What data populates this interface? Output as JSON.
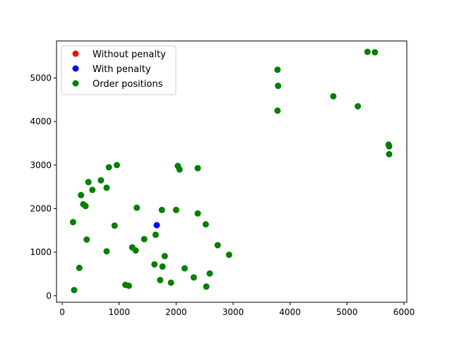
{
  "chart_data": {
    "type": "scatter",
    "title": "",
    "xlabel": "",
    "ylabel": "",
    "xlim": [
      -100,
      6050
    ],
    "ylim": [
      -150,
      5850
    ],
    "xticks": [
      0,
      1000,
      2000,
      3000,
      4000,
      5000,
      6000
    ],
    "yticks": [
      0,
      1000,
      2000,
      3000,
      4000,
      5000
    ],
    "grid": false,
    "legend_position": "upper-left",
    "series": [
      {
        "name": "Without penalty",
        "color": "#ff0000",
        "points": []
      },
      {
        "name": "With penalty",
        "color": "#0000ff",
        "points": [
          [
            1660,
            1620
          ]
        ]
      },
      {
        "name": "Order positions",
        "color": "#008000",
        "points": [
          [
            5360,
            5600
          ],
          [
            5490,
            5590
          ],
          [
            3780,
            5190
          ],
          [
            3790,
            4820
          ],
          [
            3780,
            4250
          ],
          [
            4760,
            4580
          ],
          [
            5190,
            4350
          ],
          [
            5730,
            3470
          ],
          [
            5740,
            3430
          ],
          [
            5740,
            3250
          ],
          [
            820,
            2950
          ],
          [
            960,
            3000
          ],
          [
            2030,
            2980
          ],
          [
            2060,
            2900
          ],
          [
            2380,
            2930
          ],
          [
            460,
            2610
          ],
          [
            680,
            2650
          ],
          [
            780,
            2480
          ],
          [
            530,
            2430
          ],
          [
            330,
            2310
          ],
          [
            370,
            2100
          ],
          [
            410,
            2060
          ],
          [
            1310,
            2020
          ],
          [
            1750,
            1970
          ],
          [
            2000,
            1970
          ],
          [
            2380,
            1890
          ],
          [
            190,
            1690
          ],
          [
            920,
            1610
          ],
          [
            2520,
            1640
          ],
          [
            1640,
            1400
          ],
          [
            1440,
            1300
          ],
          [
            430,
            1290
          ],
          [
            1230,
            1110
          ],
          [
            1290,
            1040
          ],
          [
            2730,
            1160
          ],
          [
            2930,
            940
          ],
          [
            780,
            1020
          ],
          [
            1800,
            910
          ],
          [
            1620,
            720
          ],
          [
            1760,
            670
          ],
          [
            2150,
            630
          ],
          [
            300,
            640
          ],
          [
            2590,
            510
          ],
          [
            2310,
            420
          ],
          [
            1720,
            360
          ],
          [
            1910,
            300
          ],
          [
            1110,
            250
          ],
          [
            1170,
            230
          ],
          [
            2530,
            210
          ],
          [
            210,
            130
          ]
        ]
      }
    ]
  }
}
